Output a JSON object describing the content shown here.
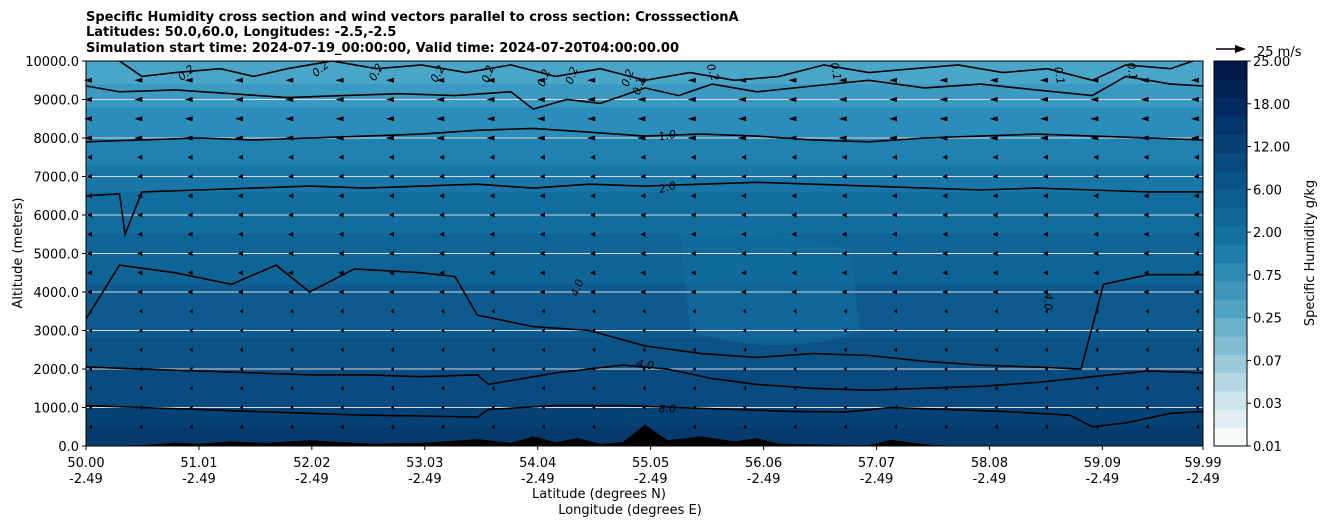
{
  "chart_data": {
    "type": "contour",
    "title_lines": [
      "Specific Humidity cross section and wind vectors parallel to cross section: CrosssectionA",
      "Latitudes: 50.0,60.0, Longitudes: -2.5,-2.5",
      "Simulation start time: 2024-07-19_00:00:00, Valid time: 2024-07-20T04:00:00.00"
    ],
    "ylabel": "Altitude (meters)",
    "xlabel_lat": "Latitude (degrees N)",
    "xlabel_lon": "Longitude (degrees E)",
    "ylim": [
      0,
      10000
    ],
    "y_ticks": [
      "0.0",
      "1000.0",
      "2000.0",
      "3000.0",
      "4000.0",
      "5000.0",
      "6000.0",
      "7000.0",
      "8000.0",
      "9000.0",
      "10000.0"
    ],
    "y_values": [
      0,
      1000,
      2000,
      3000,
      4000,
      5000,
      6000,
      7000,
      8000,
      9000,
      10000
    ],
    "x_ticks_lat": [
      "50.00",
      "51.01",
      "52.02",
      "53.03",
      "54.04",
      "55.05",
      "56.06",
      "57.07",
      "58.08",
      "59.09",
      "59.99"
    ],
    "x_ticks_lon": [
      "-2.49",
      "-2.49",
      "-2.49",
      "-2.49",
      "-2.49",
      "-2.49",
      "-2.49",
      "-2.49",
      "-2.49",
      "-2.49",
      "-2.49"
    ],
    "x_tick_positions": [
      50.0,
      51.01,
      52.02,
      53.03,
      54.04,
      55.05,
      56.06,
      57.07,
      58.08,
      59.09,
      59.99
    ],
    "xlim": [
      50.0,
      59.99
    ],
    "colorbar": {
      "label": "Specific Humidity g/kg",
      "tick_labels": [
        "0.01",
        "0.03",
        "0.07",
        "0.25",
        "0.75",
        "2.00",
        "6.00",
        "12.00",
        "18.00",
        "25.00"
      ],
      "colors": [
        "#f7fbfc",
        "#e3eef2",
        "#cde4eb",
        "#b4d7e3",
        "#9bcadb",
        "#82bdd3",
        "#69b0cb",
        "#52a3c3",
        "#3f96ba",
        "#2e8ab3",
        "#1f7dab",
        "#1472a3",
        "#0f679a",
        "#0c5d91",
        "#0a5388",
        "#08497e",
        "#063f74",
        "#04356a",
        "#032b5f",
        "#022254",
        "#011a49"
      ]
    },
    "wind_reference": "25 m/s",
    "contour_labels": [
      "0.2",
      "0.2",
      "0.2",
      "0.2",
      "0.2",
      "0.2",
      "0.2",
      "0.2",
      "0.2",
      "0.2",
      "0.1",
      "0.1",
      "0.1",
      "1.0",
      "2.0",
      "4.0",
      "4.0",
      "4.0",
      "8.0"
    ],
    "bands": [
      {
        "top": 10000,
        "color": "#4aa6c9"
      },
      {
        "top": 9400,
        "color": "#3a9ac2"
      },
      {
        "top": 8800,
        "color": "#2b8db9"
      },
      {
        "top": 8000,
        "color": "#1f82b0"
      },
      {
        "top": 7300,
        "color": "#1877a7"
      },
      {
        "top": 6600,
        "color": "#126d9f"
      },
      {
        "top": 5500,
        "color": "#0f6496"
      },
      {
        "top": 4200,
        "color": "#0d5b8e"
      },
      {
        "top": 2800,
        "color": "#0b5387"
      },
      {
        "top": 2000,
        "color": "#094b80"
      },
      {
        "top": 1000,
        "color": "#064175"
      },
      {
        "top": 500,
        "color": "#043a6c"
      }
    ],
    "contours": [
      {
        "level": "8.0",
        "points": [
          [
            50.0,
            1050
          ],
          [
            50.5,
            1000
          ],
          [
            51.0,
            950
          ],
          [
            51.5,
            900
          ],
          [
            52.0,
            850
          ],
          [
            52.5,
            800
          ],
          [
            53.0,
            780
          ],
          [
            53.5,
            750
          ],
          [
            53.6,
            950
          ],
          [
            54.2,
            1050
          ],
          [
            54.8,
            1050
          ],
          [
            55.3,
            1000
          ],
          [
            55.8,
            950
          ],
          [
            56.3,
            900
          ],
          [
            56.8,
            880
          ],
          [
            57.2,
            1000
          ],
          [
            57.7,
            950
          ],
          [
            58.2,
            900
          ],
          [
            58.8,
            800
          ],
          [
            59.0,
            500
          ],
          [
            59.3,
            600
          ],
          [
            59.7,
            850
          ],
          [
            59.99,
            900
          ]
        ]
      },
      {
        "level": "4.0",
        "points": [
          [
            50.0,
            2050
          ],
          [
            50.5,
            2000
          ],
          [
            51.0,
            1950
          ],
          [
            51.5,
            1900
          ],
          [
            52.0,
            1850
          ],
          [
            52.5,
            1850
          ],
          [
            53.0,
            1800
          ],
          [
            53.5,
            1850
          ],
          [
            53.6,
            1600
          ],
          [
            54.2,
            1900
          ],
          [
            54.8,
            2100
          ],
          [
            55.2,
            2000
          ],
          [
            55.6,
            1750
          ],
          [
            56.0,
            1600
          ],
          [
            56.5,
            1500
          ],
          [
            57.0,
            1450
          ],
          [
            57.5,
            1500
          ],
          [
            58.0,
            1550
          ],
          [
            58.5,
            1650
          ],
          [
            59.0,
            1800
          ],
          [
            59.5,
            1950
          ],
          [
            59.99,
            1900
          ]
        ]
      },
      {
        "level": "4.0",
        "points": [
          [
            50.0,
            3300
          ],
          [
            50.3,
            4700
          ],
          [
            50.8,
            4500
          ],
          [
            51.3,
            4200
          ],
          [
            51.7,
            4700
          ],
          [
            52.0,
            4000
          ],
          [
            52.4,
            4600
          ],
          [
            53.0,
            4500
          ],
          [
            53.3,
            4400
          ],
          [
            53.5,
            3400
          ],
          [
            54.0,
            3100
          ],
          [
            54.5,
            3000
          ],
          [
            55.0,
            2600
          ],
          [
            55.5,
            2400
          ],
          [
            56.0,
            2300
          ],
          [
            56.5,
            2400
          ],
          [
            57.0,
            2350
          ],
          [
            57.5,
            2200
          ],
          [
            58.0,
            2100
          ],
          [
            58.5,
            2050
          ],
          [
            58.9,
            2000
          ],
          [
            59.1,
            4200
          ],
          [
            59.5,
            4450
          ],
          [
            59.99,
            4450
          ]
        ]
      },
      {
        "level": "2.0",
        "points": [
          [
            50.0,
            6500
          ],
          [
            50.3,
            6550
          ],
          [
            50.35,
            5500
          ],
          [
            50.5,
            6600
          ],
          [
            51.0,
            6650
          ],
          [
            51.5,
            6700
          ],
          [
            52.0,
            6750
          ],
          [
            52.5,
            6700
          ],
          [
            53.0,
            6750
          ],
          [
            53.5,
            6800
          ],
          [
            54.0,
            6700
          ],
          [
            54.5,
            6800
          ],
          [
            55.0,
            6750
          ],
          [
            55.5,
            6800
          ],
          [
            56.0,
            6850
          ],
          [
            56.5,
            6800
          ],
          [
            57.0,
            6750
          ],
          [
            57.5,
            6700
          ],
          [
            58.0,
            6650
          ],
          [
            58.5,
            6700
          ],
          [
            59.0,
            6650
          ],
          [
            59.5,
            6600
          ],
          [
            59.99,
            6600
          ]
        ]
      },
      {
        "level": "1.0",
        "points": [
          [
            50.0,
            7900
          ],
          [
            50.5,
            7950
          ],
          [
            51.0,
            8000
          ],
          [
            51.5,
            7950
          ],
          [
            52.0,
            8000
          ],
          [
            52.5,
            8050
          ],
          [
            53.0,
            8100
          ],
          [
            53.5,
            8200
          ],
          [
            54.0,
            8250
          ],
          [
            54.5,
            8150
          ],
          [
            55.0,
            8050
          ],
          [
            55.5,
            8100
          ],
          [
            56.0,
            8050
          ],
          [
            56.5,
            7950
          ],
          [
            57.0,
            7900
          ],
          [
            57.5,
            8000
          ],
          [
            58.0,
            8050
          ],
          [
            58.5,
            8100
          ],
          [
            59.0,
            8050
          ],
          [
            59.5,
            8000
          ],
          [
            59.99,
            7950
          ]
        ]
      },
      {
        "level": "0.2",
        "points": [
          [
            50.0,
            9350
          ],
          [
            50.3,
            9200
          ],
          [
            50.8,
            9250
          ],
          [
            51.3,
            9150
          ],
          [
            51.8,
            9050
          ],
          [
            52.3,
            9100
          ],
          [
            52.8,
            9150
          ],
          [
            53.3,
            9100
          ],
          [
            53.8,
            9200
          ],
          [
            54.0,
            8750
          ],
          [
            54.3,
            9000
          ],
          [
            54.6,
            8900
          ],
          [
            55.0,
            9300
          ],
          [
            55.3,
            9100
          ],
          [
            55.6,
            9400
          ],
          [
            56.0,
            9200
          ],
          [
            56.5,
            9350
          ],
          [
            57.0,
            9500
          ],
          [
            57.5,
            9300
          ],
          [
            58.0,
            9400
          ],
          [
            58.5,
            9250
          ],
          [
            59.0,
            9100
          ],
          [
            59.3,
            9600
          ],
          [
            59.7,
            9400
          ],
          [
            59.99,
            9350
          ]
        ]
      },
      {
        "level": "0.2",
        "points": [
          [
            50.3,
            10000
          ],
          [
            50.5,
            9600
          ],
          [
            50.8,
            9700
          ],
          [
            51.2,
            9800
          ],
          [
            51.5,
            9600
          ],
          [
            51.8,
            9800
          ],
          [
            52.2,
            10000
          ],
          [
            52.6,
            9800
          ],
          [
            53.0,
            9900
          ],
          [
            53.4,
            9700
          ],
          [
            53.8,
            9900
          ],
          [
            54.2,
            9600
          ],
          [
            54.6,
            9800
          ],
          [
            55.0,
            9500
          ],
          [
            55.4,
            9700
          ],
          [
            55.8,
            9500
          ],
          [
            56.2,
            9600
          ],
          [
            56.6,
            9900
          ],
          [
            57.0,
            9700
          ],
          [
            57.4,
            9800
          ],
          [
            57.8,
            9900
          ],
          [
            58.2,
            9700
          ],
          [
            58.6,
            9800
          ],
          [
            59.0,
            9500
          ],
          [
            59.3,
            9900
          ],
          [
            59.7,
            9800
          ],
          [
            59.9,
            10000
          ]
        ]
      }
    ],
    "terrain": [
      [
        50.0,
        0
      ],
      [
        50.5,
        20
      ],
      [
        50.8,
        90
      ],
      [
        51.0,
        60
      ],
      [
        51.3,
        120
      ],
      [
        51.6,
        80
      ],
      [
        52.0,
        150
      ],
      [
        52.3,
        100
      ],
      [
        52.6,
        60
      ],
      [
        53.0,
        80
      ],
      [
        53.5,
        180
      ],
      [
        53.8,
        80
      ],
      [
        54.0,
        250
      ],
      [
        54.2,
        100
      ],
      [
        54.4,
        200
      ],
      [
        54.6,
        60
      ],
      [
        54.8,
        100
      ],
      [
        55.0,
        550
      ],
      [
        55.2,
        150
      ],
      [
        55.5,
        250
      ],
      [
        55.8,
        120
      ],
      [
        56.0,
        200
      ],
      [
        56.2,
        60
      ],
      [
        56.5,
        40
      ],
      [
        57.0,
        20
      ],
      [
        57.2,
        160
      ],
      [
        57.4,
        80
      ],
      [
        57.6,
        20
      ],
      [
        58.0,
        0
      ],
      [
        59.99,
        0
      ]
    ]
  }
}
